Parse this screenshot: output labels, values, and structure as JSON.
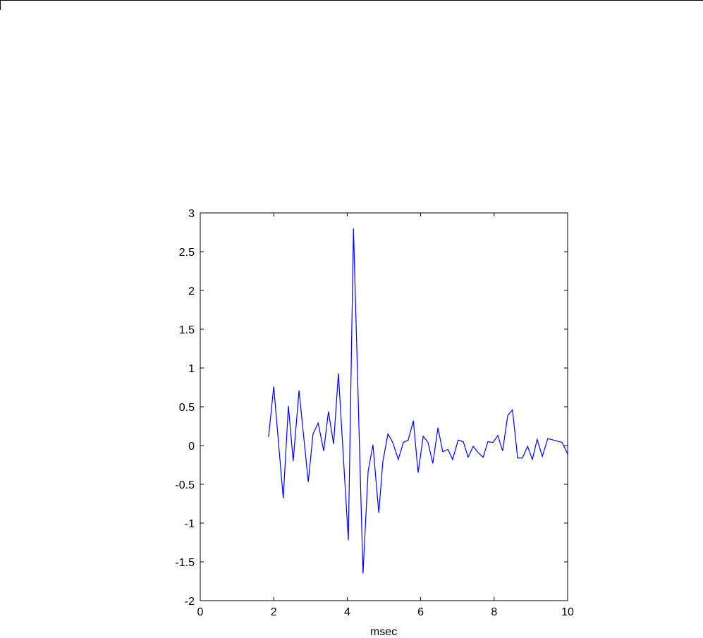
{
  "chart_data": {
    "type": "line",
    "title": "",
    "xlabel": "msec",
    "ylabel": "",
    "xlim": [
      0,
      10
    ],
    "ylim": [
      -2,
      3
    ],
    "xticks": [
      0,
      2,
      4,
      6,
      8,
      10
    ],
    "yticks": [
      -2,
      -1.5,
      -1,
      -0.5,
      0,
      0.5,
      1,
      1.5,
      2,
      2.5,
      3
    ],
    "xtick_labels": [
      "0",
      "2",
      "4",
      "6",
      "8",
      "10"
    ],
    "ytick_labels": [
      "-2",
      "-1.5",
      "-1",
      "-0.5",
      "0",
      "0.5",
      "1",
      "1.5",
      "2",
      "2.5",
      "3"
    ],
    "grid": false,
    "line_color": "#0000ff",
    "series": [
      {
        "x": [
          1.86,
          2.0,
          2.26,
          2.4,
          2.53,
          2.69,
          2.94,
          3.07,
          3.21,
          3.36,
          3.49,
          3.63,
          3.76,
          4.03,
          4.17,
          4.43,
          4.57,
          4.7,
          4.86,
          4.97,
          5.11,
          5.24,
          5.39,
          5.53,
          5.66,
          5.8,
          5.93,
          6.07,
          6.2,
          6.33,
          6.47,
          6.6,
          6.74,
          6.87,
          7.02,
          7.16,
          7.29,
          7.43,
          7.56,
          7.7,
          7.83,
          7.97,
          8.1,
          8.23,
          8.37,
          8.5,
          8.64,
          8.77,
          8.91,
          9.04,
          9.17,
          9.31,
          9.46,
          9.85,
          10.0
        ],
        "y": [
          0.11,
          0.76,
          -0.68,
          0.51,
          -0.2,
          0.71,
          -0.47,
          0.15,
          0.29,
          -0.07,
          0.44,
          0.02,
          0.93,
          -1.22,
          2.8,
          -1.65,
          -0.33,
          0.01,
          -0.87,
          -0.21,
          0.15,
          0.04,
          -0.18,
          0.04,
          0.07,
          0.32,
          -0.35,
          0.12,
          0.04,
          -0.23,
          0.23,
          -0.08,
          -0.05,
          -0.18,
          0.07,
          0.05,
          -0.15,
          -0.01,
          -0.09,
          -0.15,
          0.05,
          0.04,
          0.13,
          -0.07,
          0.39,
          0.46,
          -0.16,
          -0.16,
          -0.01,
          -0.18,
          0.08,
          -0.14,
          0.09,
          0.04,
          -0.11
        ]
      }
    ]
  }
}
